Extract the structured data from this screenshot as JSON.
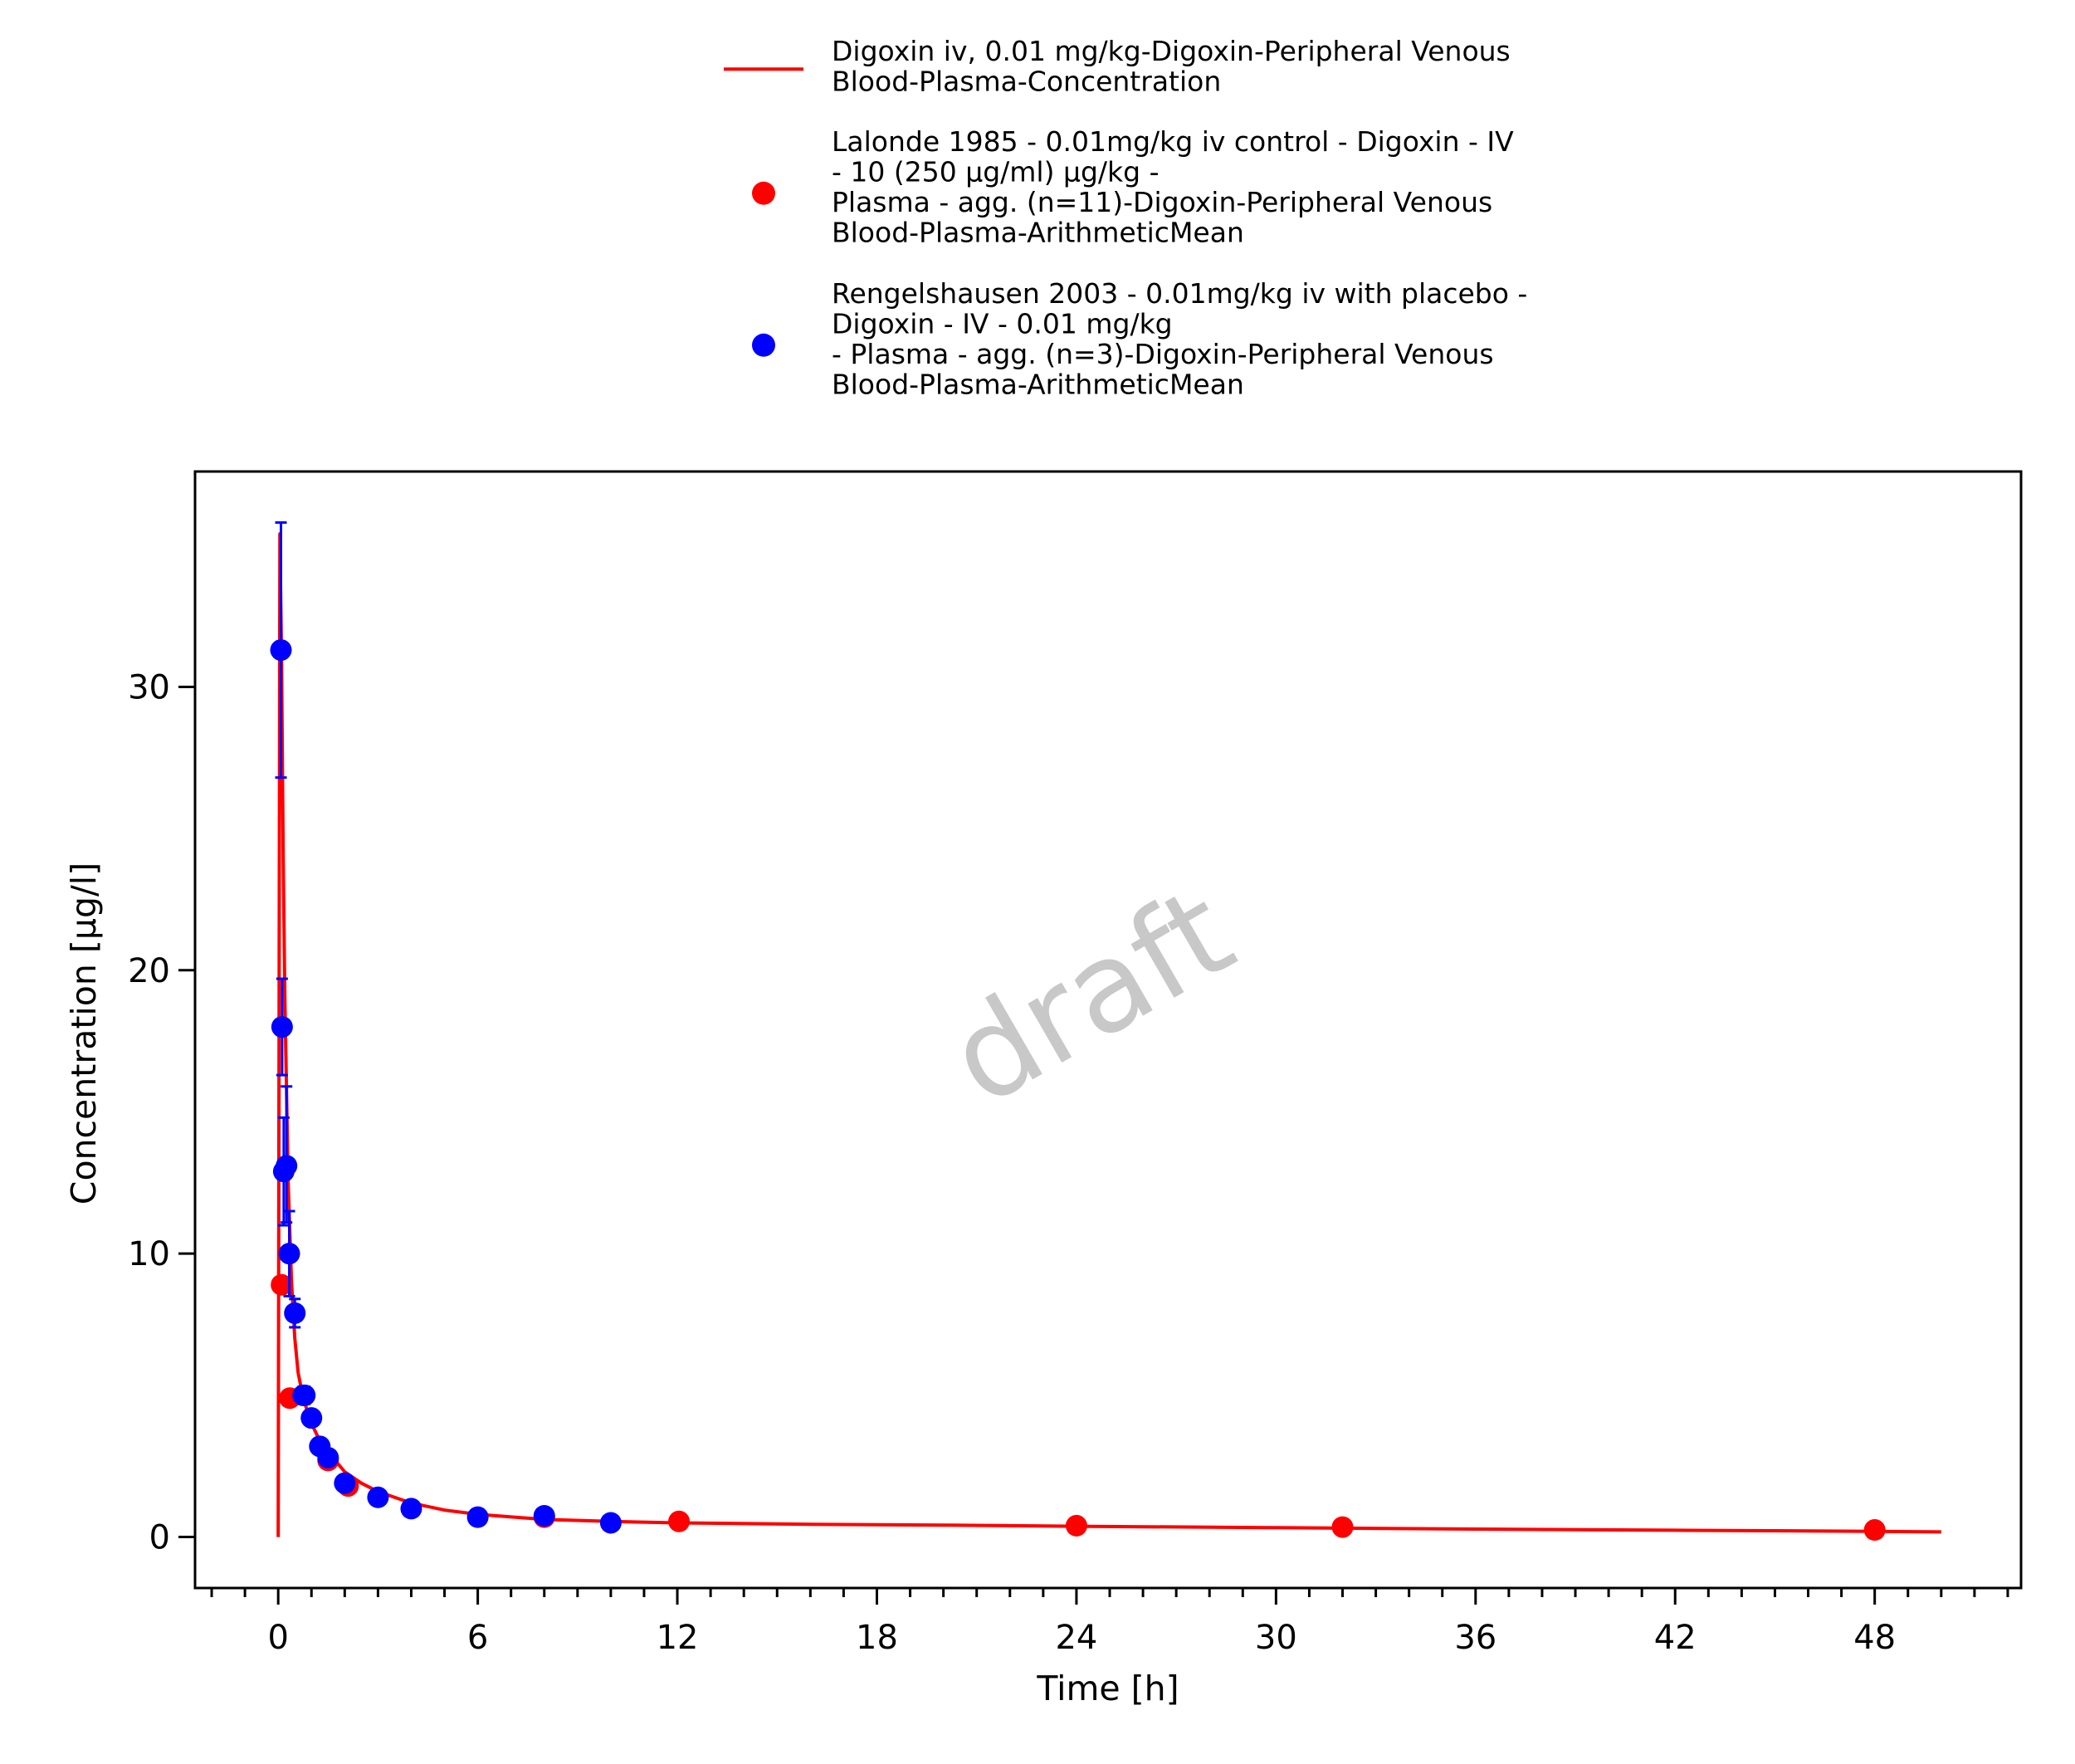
{
  "chart_data": {
    "type": "scatter",
    "title": "",
    "xlabel": "Time [h]",
    "ylabel": "Concentration [µg/l]",
    "xlim": [
      -2.5,
      52.4
    ],
    "ylim": [
      -1.8,
      37.6
    ],
    "x_ticks": [
      0,
      6,
      12,
      18,
      24,
      30,
      36,
      42,
      48
    ],
    "x_minor_step": 1,
    "y_ticks": [
      0,
      10,
      20,
      30
    ],
    "grid": false,
    "legend_position": "top-center",
    "watermark": "draft",
    "series": [
      {
        "name": "Digoxin iv, 0.01 mg/kg-Digoxin-Peripheral Venous Blood-Plasma-Concentration",
        "legend_lines": [
          "Digoxin iv, 0.01 mg/kg-Digoxin-Peripheral Venous",
          "Blood-Plasma-Concentration"
        ],
        "kind": "line",
        "color": "#ff0000",
        "x": [
          0,
          0.05,
          0.1,
          0.15,
          0.2,
          0.3,
          0.4,
          0.5,
          0.6,
          0.75,
          1.0,
          1.25,
          1.5,
          2.0,
          2.5,
          3,
          4,
          5,
          6,
          8,
          10,
          12,
          16,
          20,
          24,
          30,
          36,
          42,
          48,
          50
        ],
        "y": [
          0,
          35.4,
          31.0,
          24.0,
          19.0,
          12.5,
          9.0,
          7.0,
          5.8,
          4.9,
          4.0,
          3.4,
          3.0,
          2.3,
          1.9,
          1.6,
          1.2,
          0.95,
          0.8,
          0.62,
          0.55,
          0.5,
          0.45,
          0.42,
          0.38,
          0.33,
          0.28,
          0.24,
          0.2,
          0.18
        ]
      },
      {
        "name": "Lalonde 1985 - 0.01mg/kg iv control - Digoxin - IV - 10 (250 µg/ml) µg/kg - Plasma - agg. (n=11)-Digoxin-Peripheral Venous Blood-Plasma-ArithmeticMean",
        "legend_lines": [
          "Lalonde 1985 - 0.01mg/kg iv control - Digoxin - IV",
          "- 10 (250 µg/ml) µg/kg -",
          "Plasma - agg. (n=11)-Digoxin-Peripheral Venous",
          "Blood-Plasma-ArithmeticMean"
        ],
        "kind": "points",
        "color": "#ff0000",
        "x": [
          0.1,
          0.35,
          1.5,
          2.1,
          8.0,
          12.05,
          24.0,
          32.0,
          48.0
        ],
        "y": [
          8.9,
          4.9,
          2.7,
          1.8,
          0.7,
          0.55,
          0.4,
          0.35,
          0.25
        ]
      },
      {
        "name": "Rengelshausen 2003 - 0.01mg/kg iv with placebo - Digoxin - IV - 0.01 mg/kg - Plasma - agg. (n=3)-Digoxin-Peripheral Venous Blood-Plasma-ArithmeticMean",
        "legend_lines": [
          "Rengelshausen 2003 - 0.01mg/kg iv with placebo -",
          "Digoxin - IV - 0.01 mg/kg",
          "- Plasma - agg. (n=3)-Digoxin-Peripheral Venous",
          "Blood-Plasma-ArithmeticMean"
        ],
        "kind": "points",
        "color": "#0000ff",
        "x": [
          0.083,
          0.117,
          0.167,
          0.25,
          0.333,
          0.5,
          0.75,
          0.8,
          1.0,
          1.25,
          1.5,
          2.0,
          3.0,
          4.0,
          6.0,
          8.0,
          10.0
        ],
        "y": [
          31.3,
          18.0,
          12.9,
          13.1,
          10.0,
          7.9,
          5.0,
          5.0,
          4.2,
          3.2,
          2.8,
          1.9,
          1.4,
          1.0,
          0.7,
          0.75,
          0.5
        ],
        "y_err_low": [
          4.5,
          1.7,
          1.9,
          2.0,
          1.5,
          0.5,
          0.3,
          0.3,
          0.2,
          0.2,
          0.2,
          0.1,
          0.1,
          0.1,
          0.05,
          0.05,
          0.05
        ],
        "y_err_high": [
          4.5,
          1.7,
          1.9,
          2.8,
          1.5,
          0.5,
          0.3,
          0.3,
          0.2,
          0.2,
          0.2,
          0.1,
          0.1,
          0.1,
          0.05,
          0.05,
          0.05
        ]
      }
    ]
  }
}
